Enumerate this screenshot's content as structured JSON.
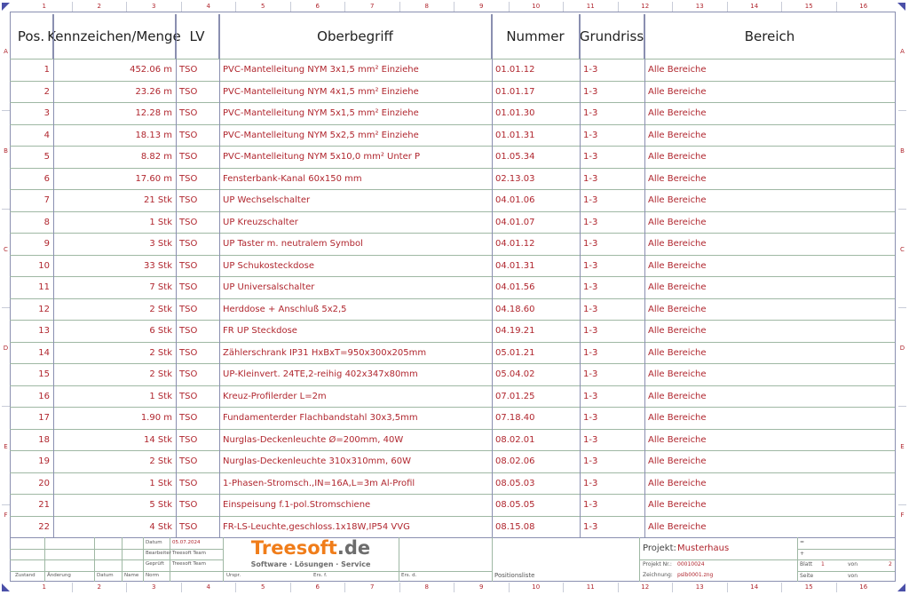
{
  "ruler": {
    "columns": [
      "1",
      "2",
      "3",
      "4",
      "5",
      "6",
      "7",
      "8",
      "9",
      "10",
      "11",
      "12",
      "13",
      "14",
      "15",
      "16"
    ],
    "rows": [
      "A",
      "B",
      "C",
      "D",
      "E",
      "F"
    ]
  },
  "table": {
    "headers": [
      "Pos.",
      "Kennzeichen/Menge",
      "LV",
      "Oberbegriff",
      "Nummer",
      "Grundriss",
      "Bereich"
    ],
    "rows": [
      [
        "1",
        "452.06 m",
        "TSO",
        "PVC-Mantelleitung NYM 3x1,5 mm² Einziehe",
        "01.01.12",
        "1-3",
        "Alle Bereiche"
      ],
      [
        "2",
        "23.26 m",
        "TSO",
        "PVC-Mantelleitung NYM 4x1,5 mm² Einziehe",
        "01.01.17",
        "1-3",
        "Alle Bereiche"
      ],
      [
        "3",
        "12.28 m",
        "TSO",
        "PVC-Mantelleitung NYM 5x1,5 mm² Einziehe",
        "01.01.30",
        "1-3",
        "Alle Bereiche"
      ],
      [
        "4",
        "18.13 m",
        "TSO",
        "PVC-Mantelleitung NYM 5x2,5 mm² Einziehe",
        "01.01.31",
        "1-3",
        "Alle Bereiche"
      ],
      [
        "5",
        "8.82 m",
        "TSO",
        "PVC-Mantelleitung NYM 5x10,0 mm² Unter P",
        "01.05.34",
        "1-3",
        "Alle Bereiche"
      ],
      [
        "6",
        "17.60 m",
        "TSO",
        "Fensterbank-Kanal 60x150 mm",
        "02.13.03",
        "1-3",
        "Alle Bereiche"
      ],
      [
        "7",
        "21 Stk",
        "TSO",
        "UP Wechselschalter",
        "04.01.06",
        "1-3",
        "Alle Bereiche"
      ],
      [
        "8",
        "1 Stk",
        "TSO",
        "UP Kreuzschalter",
        "04.01.07",
        "1-3",
        "Alle Bereiche"
      ],
      [
        "9",
        "3 Stk",
        "TSO",
        "UP Taster m. neutralem Symbol",
        "04.01.12",
        "1-3",
        "Alle Bereiche"
      ],
      [
        "10",
        "33 Stk",
        "TSO",
        "UP Schukosteckdose",
        "04.01.31",
        "1-3",
        "Alle Bereiche"
      ],
      [
        "11",
        "7 Stk",
        "TSO",
        "UP Universalschalter",
        "04.01.56",
        "1-3",
        "Alle Bereiche"
      ],
      [
        "12",
        "2 Stk",
        "TSO",
        "Herddose + Anschluß 5x2,5",
        "04.18.60",
        "1-3",
        "Alle Bereiche"
      ],
      [
        "13",
        "6 Stk",
        "TSO",
        "FR UP Steckdose",
        "04.19.21",
        "1-3",
        "Alle Bereiche"
      ],
      [
        "14",
        "2 Stk",
        "TSO",
        "Zählerschrank IP31 HxBxT=950x300x205mm",
        "05.01.21",
        "1-3",
        "Alle Bereiche"
      ],
      [
        "15",
        "2 Stk",
        "TSO",
        "UP-Kleinvert. 24TE,2-reihig 402x347x80mm",
        "05.04.02",
        "1-3",
        "Alle Bereiche"
      ],
      [
        "16",
        "1 Stk",
        "TSO",
        "Kreuz-Profilerder L=2m",
        "07.01.25",
        "1-3",
        "Alle Bereiche"
      ],
      [
        "17",
        "1.90 m",
        "TSO",
        "Fundamenterder Flachbandstahl 30x3,5mm",
        "07.18.40",
        "1-3",
        "Alle Bereiche"
      ],
      [
        "18",
        "14 Stk",
        "TSO",
        "Nurglas-Deckenleuchte Ø=200mm, 40W",
        "08.02.01",
        "1-3",
        "Alle Bereiche"
      ],
      [
        "19",
        "2 Stk",
        "TSO",
        "Nurglas-Deckenleuchte 310x310mm, 60W",
        "08.02.06",
        "1-3",
        "Alle Bereiche"
      ],
      [
        "20",
        "1 Stk",
        "TSO",
        "1-Phasen-Stromsch.,IN=16A,L=3m Al-Profil",
        "08.05.03",
        "1-3",
        "Alle Bereiche"
      ],
      [
        "21",
        "5 Stk",
        "TSO",
        "Einspeisung f.1-pol.Stromschiene",
        "08.05.05",
        "1-3",
        "Alle Bereiche"
      ],
      [
        "22",
        "4 Stk",
        "TSO",
        "FR-LS-Leuchte,geschloss.1x18W,IP54 VVG",
        "08.15.08",
        "1-3",
        "Alle Bereiche"
      ]
    ]
  },
  "titleblock": {
    "datum_label": "Datum",
    "datum_value": "05.07.2024",
    "bearbeiter_label": "Bearbeiter",
    "bearbeiter_value": "Treesoft Team",
    "geprueft_label": "Geprüft",
    "geprueft_value": "Treesoft Team",
    "zustand": "Zustand",
    "aenderung": "Änderung",
    "datum": "Datum",
    "name": "Name",
    "norm": "Norm",
    "urspr": "Urspr.",
    "ers_f": "Ers. f.",
    "ers_d": "Ers. d.",
    "logo_main": "Treesoft",
    "logo_tld": ".de",
    "logo_tagline": "Software · Lösungen · Service",
    "doc_title": "Positionsliste",
    "projekt_label": "Projekt:",
    "projekt_value": "Musterhaus",
    "projekt_nr_label": "Projekt Nr.:",
    "projekt_nr_value": "00010024",
    "zeichnung_label": "Zeichnung:",
    "zeichnung_value": "pslb0001.zng",
    "eq": "=",
    "plus": "+",
    "blatt_label": "Blatt",
    "blatt_value": "1",
    "blatt_von_label": "von",
    "blatt_von_value": "2",
    "seite_label": "Seite",
    "seite_von_label": "von"
  },
  "colors": {
    "text": "#b0262e",
    "grid": "#9fb8a4",
    "frame": "#8a8fb0",
    "logo_orange": "#f07d1a",
    "logo_gray": "#6d6d6d"
  }
}
